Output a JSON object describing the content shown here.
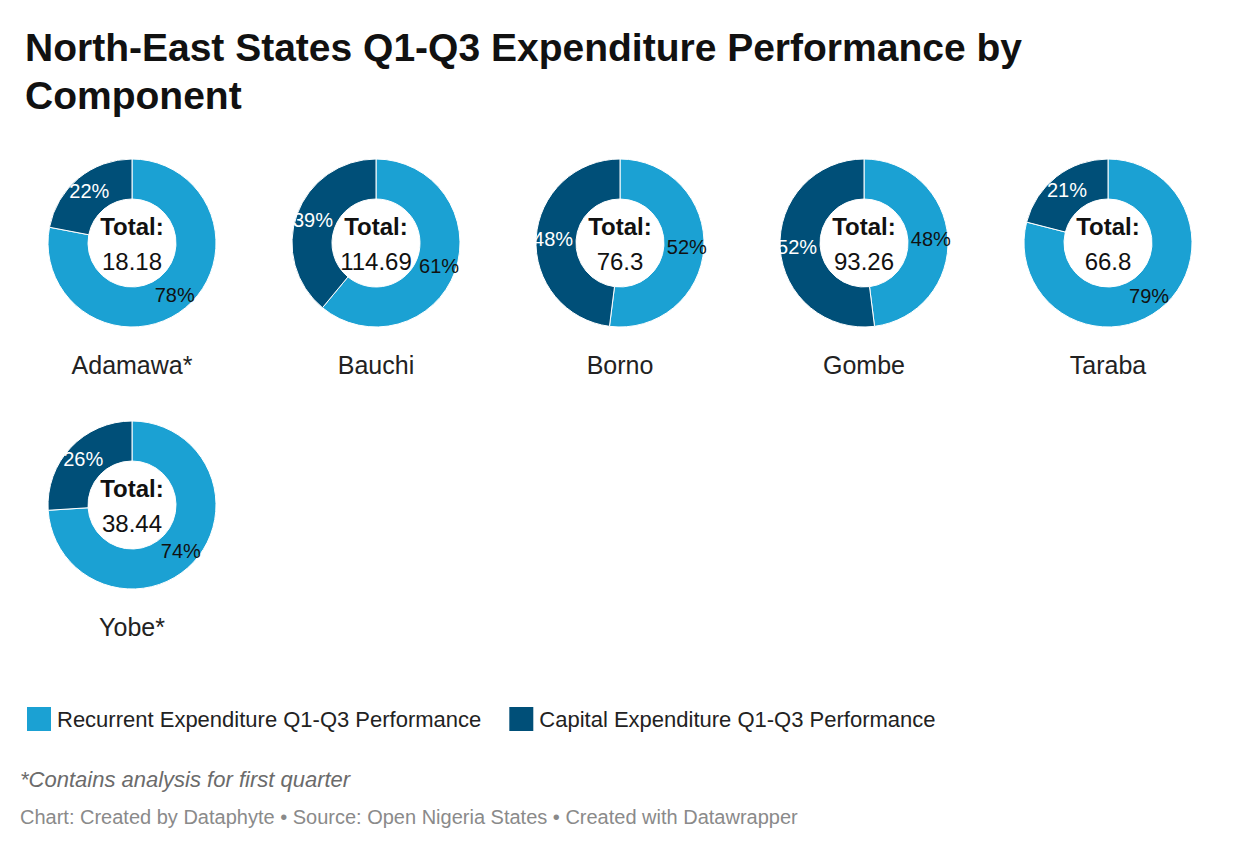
{
  "chart_data": {
    "type": "pie",
    "title": "North-East States Q1-Q3 Expenditure Performance by Component",
    "categories": [
      "Adamawa*",
      "Bauchi",
      "Borno",
      "Gombe",
      "Taraba",
      "Yobe*"
    ],
    "series": [
      {
        "name": "Recurrent Expenditure Q1-Q3 Performance",
        "color": "#1ba1d3",
        "values": [
          78,
          61,
          52,
          48,
          79,
          74
        ],
        "value_labels": [
          "78%",
          "61%",
          "52%",
          "48%",
          "79%",
          "74%"
        ]
      },
      {
        "name": "Capital Expenditure Q1-Q3 Performance",
        "color": "#004f78",
        "values": [
          22,
          39,
          48,
          52,
          21,
          26
        ],
        "value_labels": [
          "22%",
          "39%",
          "48%",
          "52%",
          "21%",
          "26%"
        ]
      }
    ],
    "center_label": "Total:",
    "totals": [
      18.18,
      114.69,
      76.3,
      93.26,
      66.8,
      38.44
    ],
    "data_labels": true,
    "legend": "bottom-left",
    "note": "*Contains analysis for first quarter",
    "source": "Chart: Created by Dataphyte • Source: Open Nigeria States • Created with Datawrapper"
  }
}
